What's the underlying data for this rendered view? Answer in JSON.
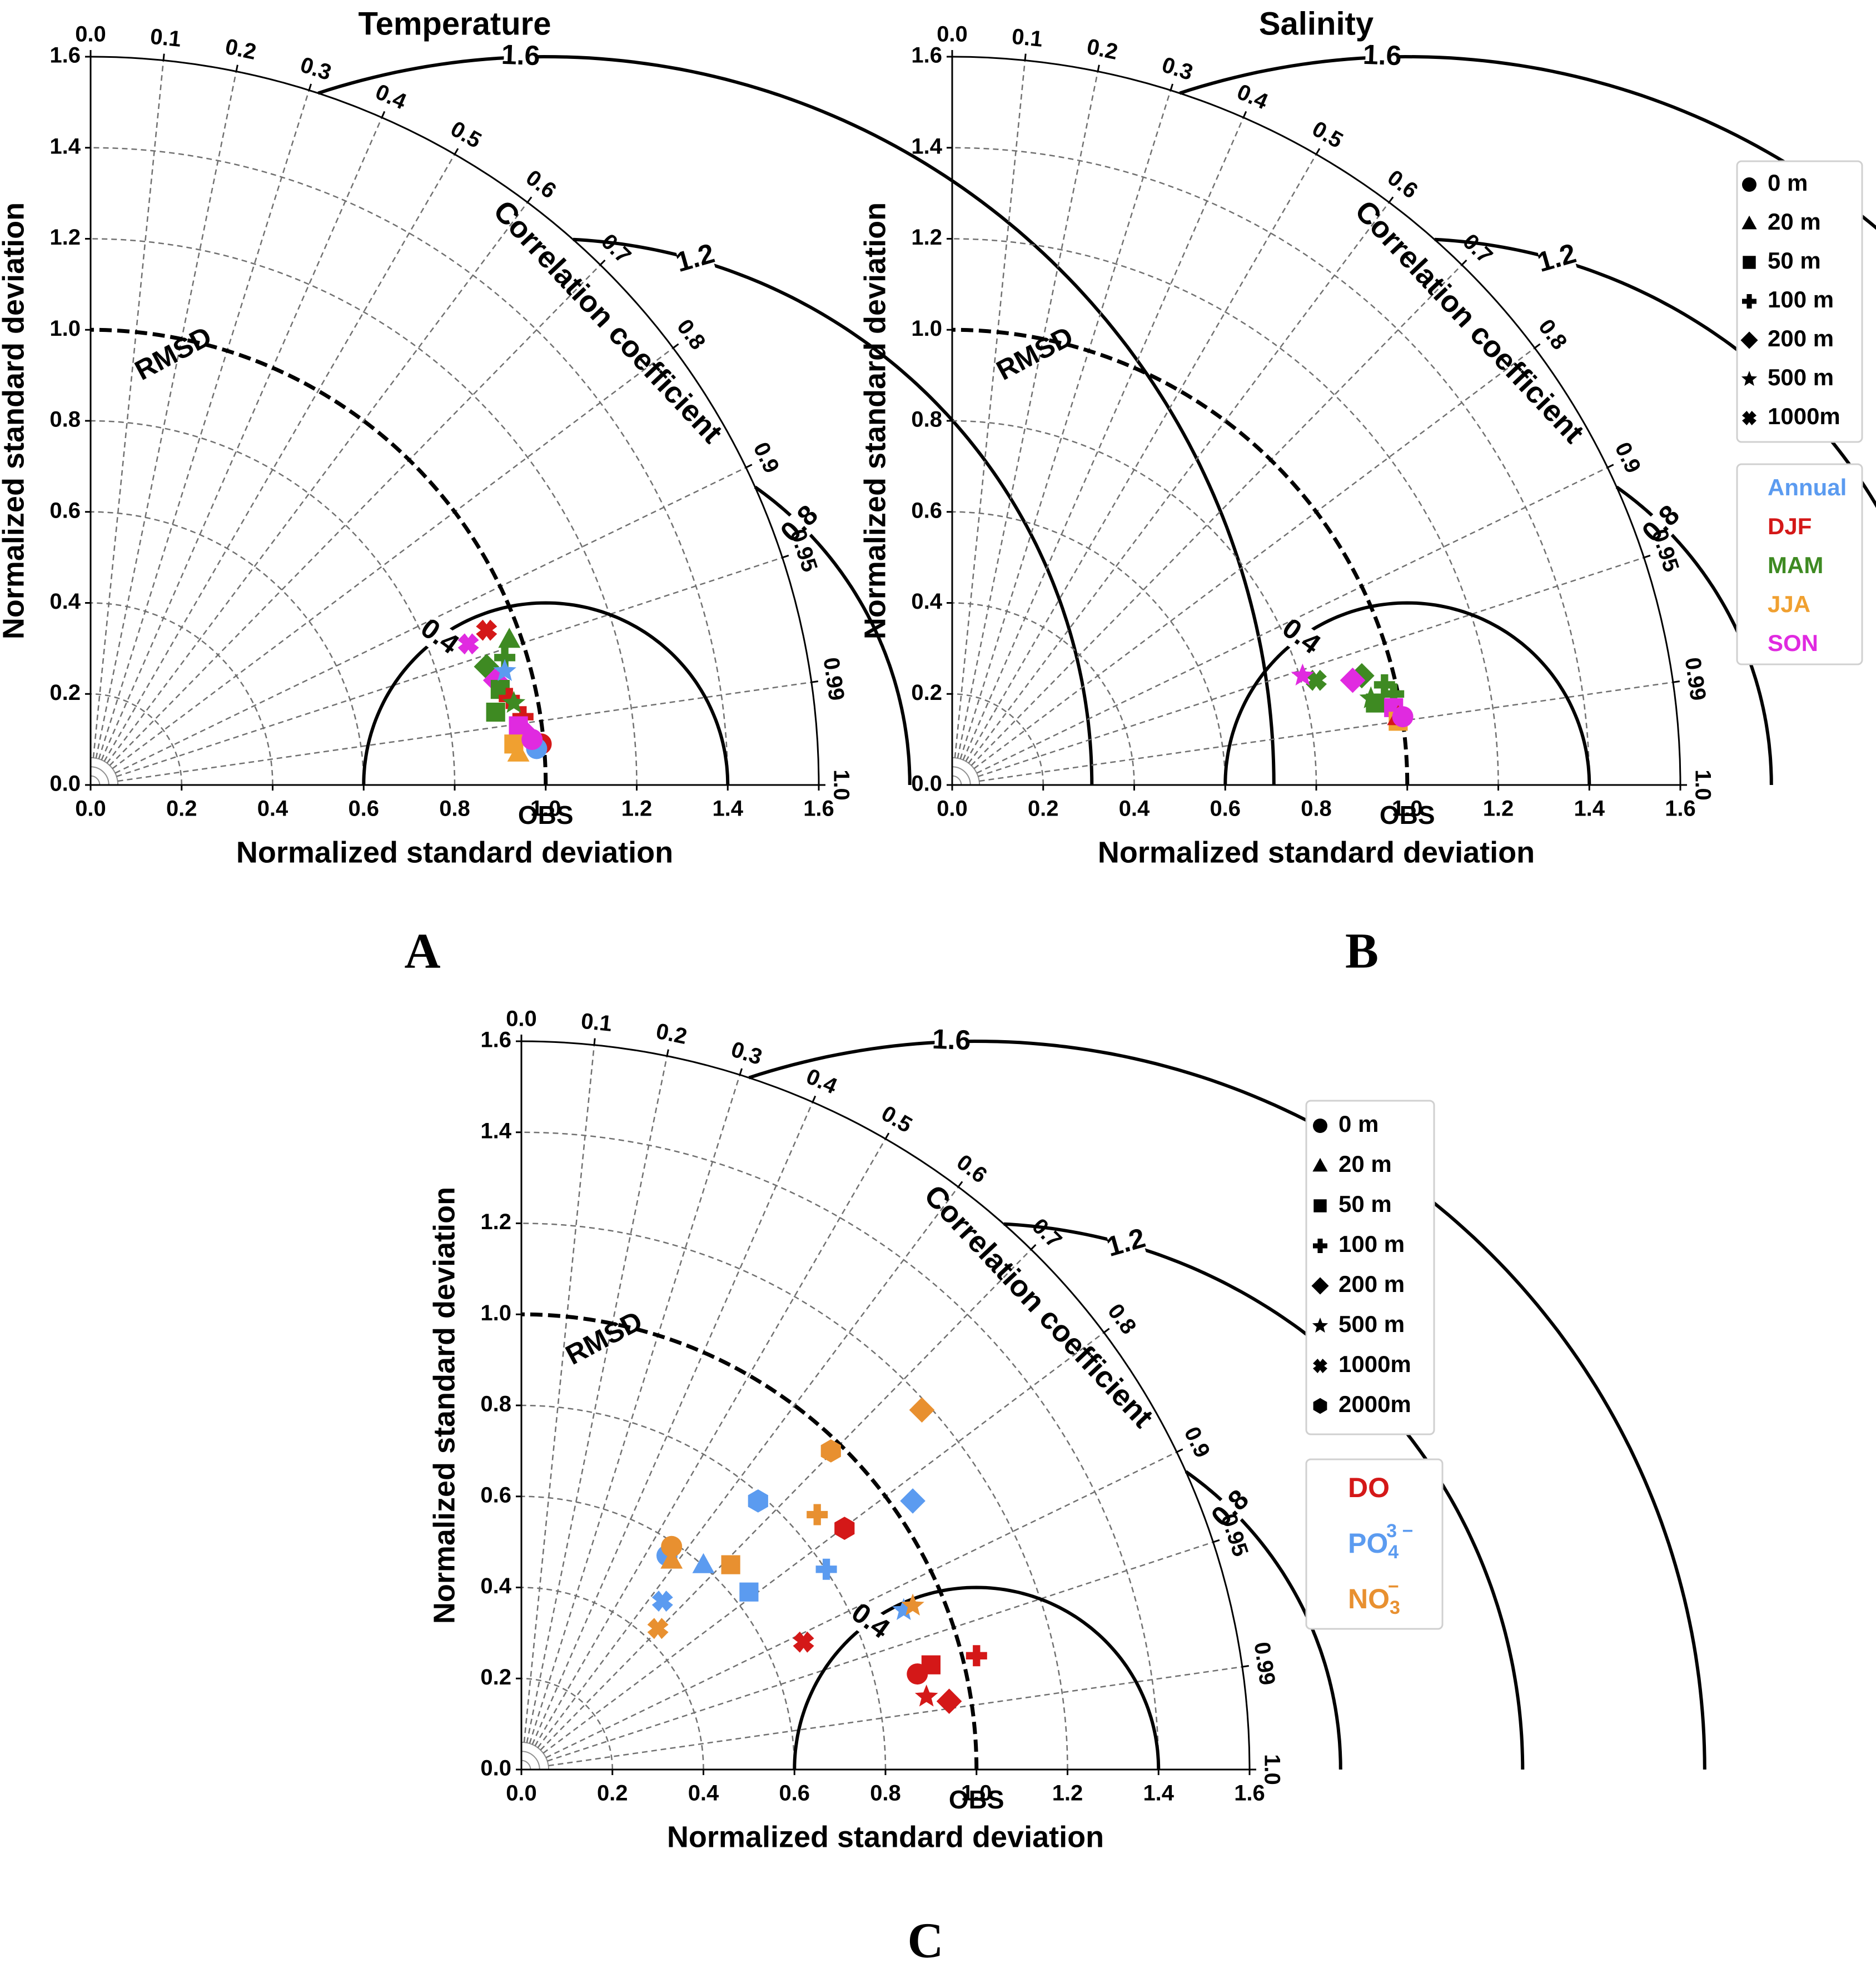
{
  "figure": {
    "panel_letters": [
      "A",
      "B",
      "C"
    ],
    "axis_label": "Normalized standard deviation",
    "corr_label": "Correlation coefficient",
    "rmsd_label": "RMSD",
    "obs_label": "OBS"
  },
  "legend_depth_ab": {
    "items": [
      {
        "label": "0 m",
        "symbol": "circle"
      },
      {
        "label": "20 m",
        "symbol": "triangle"
      },
      {
        "label": "50 m",
        "symbol": "square"
      },
      {
        "label": "100 m",
        "symbol": "plus"
      },
      {
        "label": "200 m",
        "symbol": "diamond"
      },
      {
        "label": "500 m",
        "symbol": "star"
      },
      {
        "label": "1000m",
        "symbol": "x"
      }
    ]
  },
  "legend_season": {
    "items": [
      {
        "label": "Annual",
        "color": "#5b9bf0"
      },
      {
        "label": "DJF",
        "color": "#d41818"
      },
      {
        "label": "MAM",
        "color": "#3e8a22"
      },
      {
        "label": "JJA",
        "color": "#f0a030"
      },
      {
        "label": "SON",
        "color": "#e02ae0"
      }
    ]
  },
  "legend_depth_c": {
    "items": [
      {
        "label": "0 m",
        "symbol": "circle"
      },
      {
        "label": "20 m",
        "symbol": "triangle"
      },
      {
        "label": "50 m",
        "symbol": "square"
      },
      {
        "label": "100 m",
        "symbol": "plus"
      },
      {
        "label": "200 m",
        "symbol": "diamond"
      },
      {
        "label": "500 m",
        "symbol": "star"
      },
      {
        "label": "1000m",
        "symbol": "x"
      },
      {
        "label": "2000m",
        "symbol": "hexagon"
      }
    ]
  },
  "legend_variable": {
    "items": [
      {
        "base": "DO",
        "sup": "",
        "sub": "",
        "color": "#d41818"
      },
      {
        "base": "PO",
        "sup": "3 −",
        "sub": "4",
        "color": "#5b9bf0"
      },
      {
        "base": "NO",
        "sup": "−",
        "sub": "3",
        "color": "#e89030"
      }
    ]
  },
  "chart_data": [
    {
      "type": "scatter",
      "subtype": "taylor_diagram",
      "panel": "A",
      "title": "Temperature",
      "xlabel": "Normalized standard deviation",
      "ylabel": "Normalized standard deviation",
      "r_max": 1.6,
      "std_ticks": [
        "0.0",
        "0.2",
        "0.4",
        "0.6",
        "0.8",
        "1.0",
        "1.2",
        "1.4",
        "1.6"
      ],
      "corr_ticks": [
        "0.0",
        "0.1",
        "0.2",
        "0.3",
        "0.4",
        "0.5",
        "0.6",
        "0.7",
        "0.8",
        "0.9",
        "0.95",
        "0.99",
        "1.0"
      ],
      "rmsd_levels": [
        0.4,
        0.8,
        1.2,
        1.6
      ],
      "rmsd_labels": [
        "0.4",
        "0.8",
        "1.2",
        "1.6"
      ],
      "points": [
        {
          "symbol": "circle",
          "color": "#d41818",
          "x": 0.99,
          "y": 0.09
        },
        {
          "symbol": "circle",
          "color": "#5b9bf0",
          "x": 0.98,
          "y": 0.08
        },
        {
          "symbol": "x",
          "color": "#d41818",
          "x": 0.87,
          "y": 0.34
        },
        {
          "symbol": "x",
          "color": "#e02ae0",
          "x": 0.83,
          "y": 0.31
        },
        {
          "symbol": "triangle",
          "color": "#3e8a22",
          "x": 0.92,
          "y": 0.32
        },
        {
          "symbol": "plus",
          "color": "#3e8a22",
          "x": 0.91,
          "y": 0.28
        },
        {
          "symbol": "diamond",
          "color": "#3e8a22",
          "x": 0.87,
          "y": 0.26
        },
        {
          "symbol": "diamond",
          "color": "#e02ae0",
          "x": 0.89,
          "y": 0.23
        },
        {
          "symbol": "square",
          "color": "#3e8a22",
          "x": 0.9,
          "y": 0.21
        },
        {
          "symbol": "star",
          "color": "#5b9bf0",
          "x": 0.91,
          "y": 0.25
        },
        {
          "symbol": "plus",
          "color": "#d41818",
          "x": 0.92,
          "y": 0.19
        },
        {
          "symbol": "square",
          "color": "#3e8a22",
          "x": 0.89,
          "y": 0.16
        },
        {
          "symbol": "plus",
          "color": "#d41818",
          "x": 0.95,
          "y": 0.15
        },
        {
          "symbol": "square",
          "color": "#e02ae0",
          "x": 0.94,
          "y": 0.13
        },
        {
          "symbol": "diamond",
          "color": "#e02ae0",
          "x": 0.96,
          "y": 0.11
        },
        {
          "symbol": "square",
          "color": "#f0a030",
          "x": 0.93,
          "y": 0.09
        },
        {
          "symbol": "triangle",
          "color": "#f0a030",
          "x": 0.94,
          "y": 0.07
        },
        {
          "symbol": "circle",
          "color": "#e02ae0",
          "x": 0.97,
          "y": 0.1
        },
        {
          "symbol": "star",
          "color": "#3e8a22",
          "x": 0.93,
          "y": 0.18
        }
      ]
    },
    {
      "type": "scatter",
      "subtype": "taylor_diagram",
      "panel": "B",
      "title": "Salinity",
      "xlabel": "Normalized standard deviation",
      "ylabel": "Normalized standard deviation",
      "r_max": 1.6,
      "std_ticks": [
        "0.0",
        "0.2",
        "0.4",
        "0.6",
        "0.8",
        "1.0",
        "1.2",
        "1.4",
        "1.6"
      ],
      "corr_ticks": [
        "0.0",
        "0.1",
        "0.2",
        "0.3",
        "0.4",
        "0.5",
        "0.6",
        "0.7",
        "0.8",
        "0.9",
        "0.95",
        "0.99",
        "1.0"
      ],
      "rmsd_levels": [
        0.4,
        0.8,
        1.2,
        1.6
      ],
      "rmsd_labels": [
        "0.4",
        "0.8",
        "1.2",
        "1.6"
      ],
      "points": [
        {
          "symbol": "x",
          "color": "#3e8a22",
          "x": 0.8,
          "y": 0.23
        },
        {
          "symbol": "star",
          "color": "#e02ae0",
          "x": 0.77,
          "y": 0.24
        },
        {
          "symbol": "diamond",
          "color": "#3e8a22",
          "x": 0.9,
          "y": 0.24
        },
        {
          "symbol": "diamond",
          "color": "#e02ae0",
          "x": 0.88,
          "y": 0.23
        },
        {
          "symbol": "plus",
          "color": "#3e8a22",
          "x": 0.95,
          "y": 0.22
        },
        {
          "symbol": "square",
          "color": "#3e8a22",
          "x": 0.93,
          "y": 0.18
        },
        {
          "symbol": "plus",
          "color": "#3e8a22",
          "x": 0.97,
          "y": 0.2
        },
        {
          "symbol": "square",
          "color": "#e02ae0",
          "x": 0.97,
          "y": 0.17
        },
        {
          "symbol": "square",
          "color": "#f0a030",
          "x": 0.98,
          "y": 0.14
        },
        {
          "symbol": "triangle",
          "color": "#d41818",
          "x": 0.98,
          "y": 0.15
        },
        {
          "symbol": "circle",
          "color": "#e02ae0",
          "x": 0.99,
          "y": 0.15
        },
        {
          "symbol": "star",
          "color": "#3e8a22",
          "x": 0.92,
          "y": 0.19
        }
      ]
    },
    {
      "type": "scatter",
      "subtype": "taylor_diagram",
      "panel": "C",
      "title": "",
      "xlabel": "Normalized standard deviation",
      "ylabel": "Normalized standard deviation",
      "r_max": 1.6,
      "std_ticks": [
        "0.0",
        "0.2",
        "0.4",
        "0.6",
        "0.8",
        "1.0",
        "1.2",
        "1.4",
        "1.6"
      ],
      "corr_ticks": [
        "0.0",
        "0.1",
        "0.2",
        "0.3",
        "0.4",
        "0.5",
        "0.6",
        "0.7",
        "0.8",
        "0.9",
        "0.95",
        "0.99",
        "1.0"
      ],
      "rmsd_levels": [
        0.4,
        0.8,
        1.2,
        1.6
      ],
      "rmsd_labels": [
        "0.4",
        "0.8",
        "1.2",
        "1.6"
      ],
      "points": [
        {
          "symbol": "circle",
          "color": "#d41818",
          "x": 0.87,
          "y": 0.21,
          "series": "DO"
        },
        {
          "symbol": "square",
          "color": "#d41818",
          "x": 0.9,
          "y": 0.23,
          "series": "DO"
        },
        {
          "symbol": "plus",
          "color": "#d41818",
          "x": 1.0,
          "y": 0.25,
          "series": "DO"
        },
        {
          "symbol": "diamond",
          "color": "#d41818",
          "x": 0.94,
          "y": 0.15,
          "series": "DO"
        },
        {
          "symbol": "star",
          "color": "#d41818",
          "x": 0.89,
          "y": 0.16,
          "series": "DO"
        },
        {
          "symbol": "x",
          "color": "#d41818",
          "x": 0.62,
          "y": 0.28,
          "series": "DO"
        },
        {
          "symbol": "hexagon",
          "color": "#d41818",
          "x": 0.71,
          "y": 0.53,
          "series": "DO"
        },
        {
          "symbol": "circle",
          "color": "#5b9bf0",
          "x": 0.32,
          "y": 0.47,
          "series": "PO4"
        },
        {
          "symbol": "triangle",
          "color": "#5b9bf0",
          "x": 0.4,
          "y": 0.45,
          "series": "PO4"
        },
        {
          "symbol": "square",
          "color": "#5b9bf0",
          "x": 0.5,
          "y": 0.39,
          "series": "PO4"
        },
        {
          "symbol": "plus",
          "color": "#5b9bf0",
          "x": 0.67,
          "y": 0.44,
          "series": "PO4"
        },
        {
          "symbol": "diamond",
          "color": "#5b9bf0",
          "x": 0.86,
          "y": 0.59,
          "series": "PO4"
        },
        {
          "symbol": "star",
          "color": "#5b9bf0",
          "x": 0.84,
          "y": 0.35,
          "series": "PO4"
        },
        {
          "symbol": "x",
          "color": "#5b9bf0",
          "x": 0.31,
          "y": 0.37,
          "series": "PO4"
        },
        {
          "symbol": "hexagon",
          "color": "#5b9bf0",
          "x": 0.52,
          "y": 0.59,
          "series": "PO4"
        },
        {
          "symbol": "circle",
          "color": "#e89030",
          "x": 0.33,
          "y": 0.49,
          "series": "NO3"
        },
        {
          "symbol": "triangle",
          "color": "#e89030",
          "x": 0.33,
          "y": 0.46,
          "series": "NO3"
        },
        {
          "symbol": "square",
          "color": "#e89030",
          "x": 0.46,
          "y": 0.45,
          "series": "NO3"
        },
        {
          "symbol": "plus",
          "color": "#e89030",
          "x": 0.65,
          "y": 0.56,
          "series": "NO3"
        },
        {
          "symbol": "diamond",
          "color": "#e89030",
          "x": 0.88,
          "y": 0.79,
          "series": "NO3"
        },
        {
          "symbol": "star",
          "color": "#e89030",
          "x": 0.86,
          "y": 0.36,
          "series": "NO3"
        },
        {
          "symbol": "x",
          "color": "#e89030",
          "x": 0.3,
          "y": 0.31,
          "series": "NO3"
        },
        {
          "symbol": "hexagon",
          "color": "#e89030",
          "x": 0.68,
          "y": 0.7,
          "series": "NO3"
        }
      ]
    }
  ]
}
